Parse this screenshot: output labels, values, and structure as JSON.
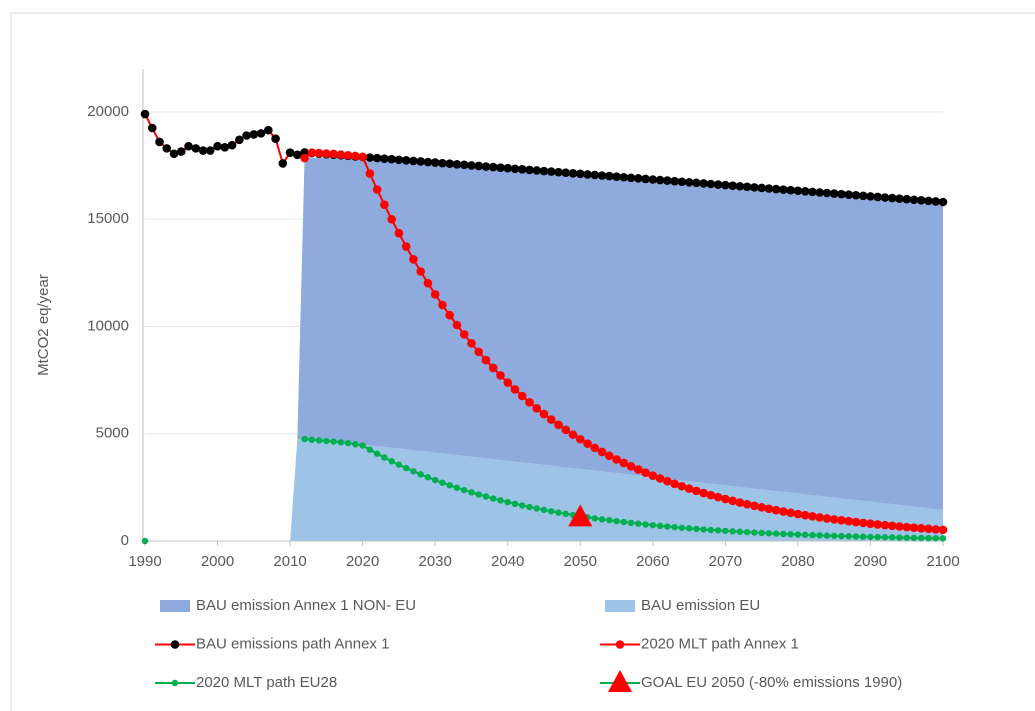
{
  "chart_data": {
    "type": "line",
    "y_label": "MtCO2 eq/year",
    "xlim": [
      1990,
      2100
    ],
    "xticks": [
      1990,
      2000,
      2010,
      2020,
      2030,
      2040,
      2050,
      2060,
      2070,
      2080,
      2090,
      2100
    ],
    "ylim": [
      0,
      22000
    ],
    "yticks": [
      0,
      5000,
      10000,
      15000,
      20000
    ],
    "grid": true,
    "x": [
      1990,
      1991,
      1992,
      1993,
      1994,
      1995,
      1996,
      1997,
      1998,
      1999,
      2000,
      2001,
      2002,
      2003,
      2004,
      2005,
      2006,
      2007,
      2008,
      2009,
      2010,
      2011,
      2012,
      2013,
      2014,
      2015,
      2016,
      2017,
      2018,
      2019,
      2020,
      2021,
      2022,
      2023,
      2024,
      2025,
      2026,
      2027,
      2028,
      2029,
      2030,
      2031,
      2032,
      2033,
      2034,
      2035,
      2036,
      2037,
      2038,
      2039,
      2040,
      2041,
      2042,
      2043,
      2044,
      2045,
      2046,
      2047,
      2048,
      2049,
      2050,
      2051,
      2052,
      2053,
      2054,
      2055,
      2056,
      2057,
      2058,
      2059,
      2060,
      2061,
      2062,
      2063,
      2064,
      2065,
      2066,
      2067,
      2068,
      2069,
      2070,
      2071,
      2072,
      2073,
      2074,
      2075,
      2076,
      2077,
      2078,
      2079,
      2080,
      2081,
      2082,
      2083,
      2084,
      2085,
      2086,
      2087,
      2088,
      2089,
      2090,
      2091,
      2092,
      2093,
      2094,
      2095,
      2096,
      2097,
      2098,
      2099,
      2100
    ],
    "series": [
      {
        "name": "BAU emission Annex 1 NON- EU",
        "type": "area",
        "color": "#8faadc",
        "x": [
          2010,
          2011,
          2012,
          2020,
          2100
        ],
        "values": [
          0,
          0,
          13150,
          13400,
          14350
        ]
      },
      {
        "name": "BAU emission EU",
        "type": "area",
        "color": "#9dc3e6",
        "x": [
          2010,
          2011,
          2012,
          2020,
          2100
        ],
        "values": [
          0,
          4750,
          4720,
          4500,
          1450
        ]
      },
      {
        "name": "BAU emissions path Annex 1",
        "type": "line",
        "color": "#000000",
        "line_color": "#ff0000",
        "values": [
          19900,
          19250,
          18600,
          18300,
          18050,
          18150,
          18400,
          18300,
          18200,
          18200,
          18400,
          18350,
          18450,
          18700,
          18900,
          18950,
          19000,
          19150,
          18750,
          17600,
          18100,
          18000,
          18110,
          18084,
          18058,
          18031,
          18005,
          17979,
          17953,
          17926,
          17900,
          17874,
          17848,
          17821,
          17795,
          17769,
          17743,
          17716,
          17690,
          17664,
          17638,
          17611,
          17585,
          17559,
          17533,
          17506,
          17480,
          17454,
          17428,
          17401,
          17375,
          17349,
          17323,
          17296,
          17270,
          17244,
          17218,
          17191,
          17165,
          17139,
          17113,
          17086,
          17060,
          17034,
          17008,
          16981,
          16955,
          16929,
          16903,
          16876,
          16850,
          16824,
          16798,
          16771,
          16745,
          16719,
          16693,
          16666,
          16640,
          16614,
          16588,
          16561,
          16535,
          16509,
          16483,
          16456,
          16430,
          16404,
          16378,
          16351,
          16325,
          16299,
          16273,
          16246,
          16220,
          16194,
          16168,
          16141,
          16115,
          16089,
          16063,
          16036,
          16010,
          15984,
          15958,
          15931,
          15905,
          15879,
          15853,
          15826,
          15800
        ]
      },
      {
        "name": "2020 MLT path Annex 1",
        "type": "line",
        "color": "#ff0000",
        "line_color": "#ff0000",
        "values": [
          null,
          null,
          null,
          null,
          null,
          null,
          null,
          null,
          null,
          null,
          null,
          null,
          null,
          null,
          null,
          null,
          null,
          null,
          null,
          null,
          null,
          null,
          17850,
          18100,
          18080,
          18060,
          18040,
          18010,
          17980,
          17950,
          17900,
          17125,
          16383,
          15674,
          14995,
          14346,
          13724,
          13130,
          12561,
          12017,
          11497,
          10999,
          10523,
          10067,
          9631,
          9214,
          8815,
          8433,
          8068,
          7719,
          7385,
          7065,
          6759,
          6466,
          6186,
          5918,
          5662,
          5417,
          5182,
          4958,
          4743,
          4538,
          4341,
          4153,
          3973,
          3801,
          3637,
          3479,
          3329,
          3184,
          3046,
          2914,
          2788,
          2667,
          2552,
          2441,
          2336,
          2235,
          2138,
          2045,
          1957,
          1872,
          1791,
          1713,
          1639,
          1568,
          1500,
          1435,
          1373,
          1314,
          1257,
          1202,
          1150,
          1100,
          1053,
          1007,
          964,
          922,
          882,
          844,
          807,
          772,
          739,
          707,
          676,
          647,
          619,
          592,
          567,
          542,
          519
        ]
      },
      {
        "name": "2020 MLT path EU28",
        "type": "line",
        "color": "#00b050",
        "line_color": "#00b050",
        "values": [
          0,
          null,
          null,
          null,
          null,
          null,
          null,
          null,
          null,
          null,
          null,
          null,
          null,
          null,
          null,
          null,
          null,
          null,
          null,
          null,
          null,
          null,
          4750,
          4720,
          4690,
          4660,
          4630,
          4600,
          4560,
          4510,
          4450,
          4255,
          4068,
          3889,
          3718,
          3555,
          3399,
          3250,
          3107,
          2971,
          2840,
          2715,
          2596,
          2482,
          2373,
          2269,
          2169,
          2074,
          1983,
          1896,
          1813,
          1733,
          1657,
          1584,
          1515,
          1448,
          1385,
          1324,
          1266,
          1210,
          1157,
          1106,
          1058,
          1011,
          967,
          924,
          884,
          845,
          808,
          772,
          738,
          706,
          675,
          645,
          617,
          590,
          564,
          539,
          515,
          493,
          471,
          450,
          431,
          412,
          394,
          376,
          360,
          344,
          329,
          314,
          301,
          287,
          275,
          263,
          251,
          240,
          230,
          220,
          210,
          201,
          192,
          183,
          175,
          168,
          160,
          153,
          147,
          140,
          134,
          128,
          122
        ]
      },
      {
        "name": "GOAL EU 2050 (-80% emissions 1990)",
        "type": "scatter",
        "marker": "triangle",
        "color": "#ff0000",
        "line_color": "#00b050",
        "x": [
          2050
        ],
        "values": [
          1100
        ]
      }
    ]
  }
}
